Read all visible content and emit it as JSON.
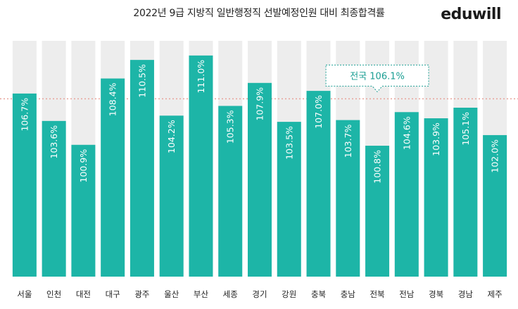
{
  "header": {
    "title": "2022년 9급 지방직 일반행정직 선발예정인원 대비 최종합격률",
    "logo_text": "eduwill"
  },
  "colors": {
    "bar": "#1DB5A7",
    "panel_background": "#EDEDED",
    "national_line": "#E8A39A",
    "callout": "#1A9E93"
  },
  "chart_data": {
    "type": "bar",
    "title": "2022년 9급 지방직 일반행정직 선발예정인원 대비 최종합격률",
    "categories": [
      "서울",
      "인천",
      "대전",
      "대구",
      "광주",
      "울산",
      "부산",
      "세종",
      "경기",
      "강원",
      "충북",
      "충남",
      "전북",
      "전남",
      "경북",
      "경남",
      "제주"
    ],
    "values": [
      106.7,
      103.6,
      100.9,
      108.4,
      110.5,
      104.2,
      111.0,
      105.3,
      107.9,
      103.5,
      107.0,
      103.7,
      100.8,
      104.6,
      103.9,
      105.1,
      102.0
    ],
    "value_labels": [
      "106.7%",
      "103.6%",
      "100.9%",
      "108.4%",
      "110.5%",
      "104.2%",
      "111.0%",
      "105.3%",
      "107.9%",
      "103.5%",
      "107.0%",
      "103.7%",
      "100.8%",
      "104.6%",
      "103.9%",
      "105.1%",
      "102.0%"
    ],
    "reference_line": {
      "value": 106.1,
      "label": "전국 106.1%"
    },
    "xlabel": "",
    "ylabel": "",
    "ylim": [
      86,
      112.5
    ],
    "grid": false,
    "legend": "none"
  }
}
